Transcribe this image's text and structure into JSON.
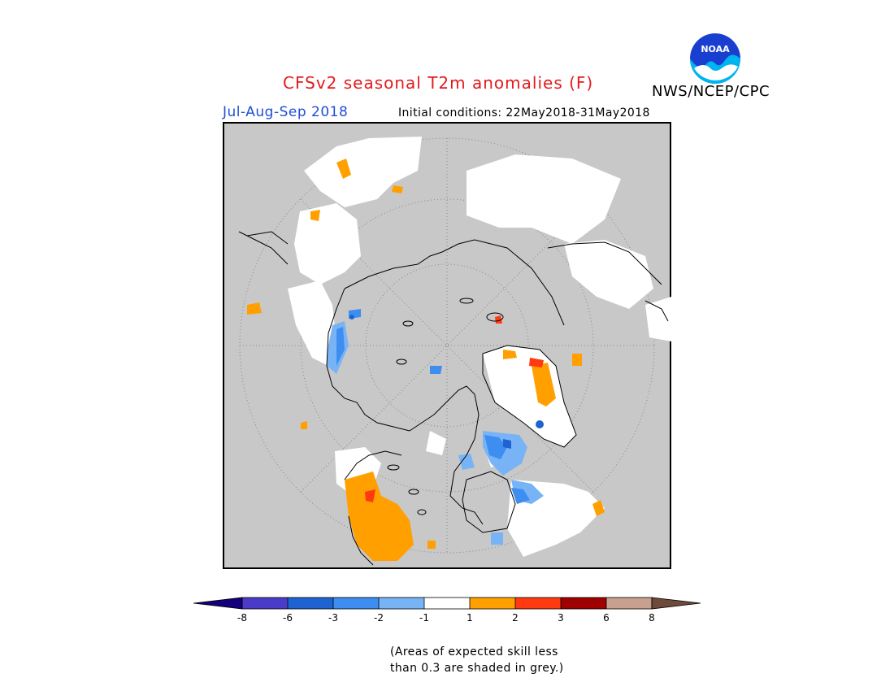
{
  "header": {
    "title": "CFSv2 seasonal T2m anomalies (F)",
    "organization": "NWS/NCEP/CPC",
    "logo_text": "NOAA",
    "season": "Jul-Aug-Sep 2018",
    "initial_conditions": "Initial conditions: 22May2018-31May2018"
  },
  "map": {
    "projection": "north-polar-stereographic",
    "background_color": "#c8c8c8",
    "graticule": "dotted"
  },
  "colorbar": {
    "labels": [
      "-8",
      "-6",
      "-3",
      "-2",
      "-1",
      "1",
      "2",
      "3",
      "6",
      "8"
    ],
    "colors": {
      "below_-8": "#14007a",
      "-8_to_-6": "#4a3cc8",
      "-6_to_-3": "#1f63d2",
      "-3_to_-2": "#3d8ef0",
      "-2_to_-1": "#78b4f5",
      "-1_to_1": "#ffffff",
      "1_to_2": "#ffa000",
      "2_to_3": "#ff3a10",
      "3_to_6": "#a00000",
      "6_to_8": "#c8a090",
      "above_8": "#6e4a3a"
    }
  },
  "footnote": {
    "line1": "(Areas of expected skill less",
    "line2": "than 0.3 are shaded in grey.)"
  }
}
